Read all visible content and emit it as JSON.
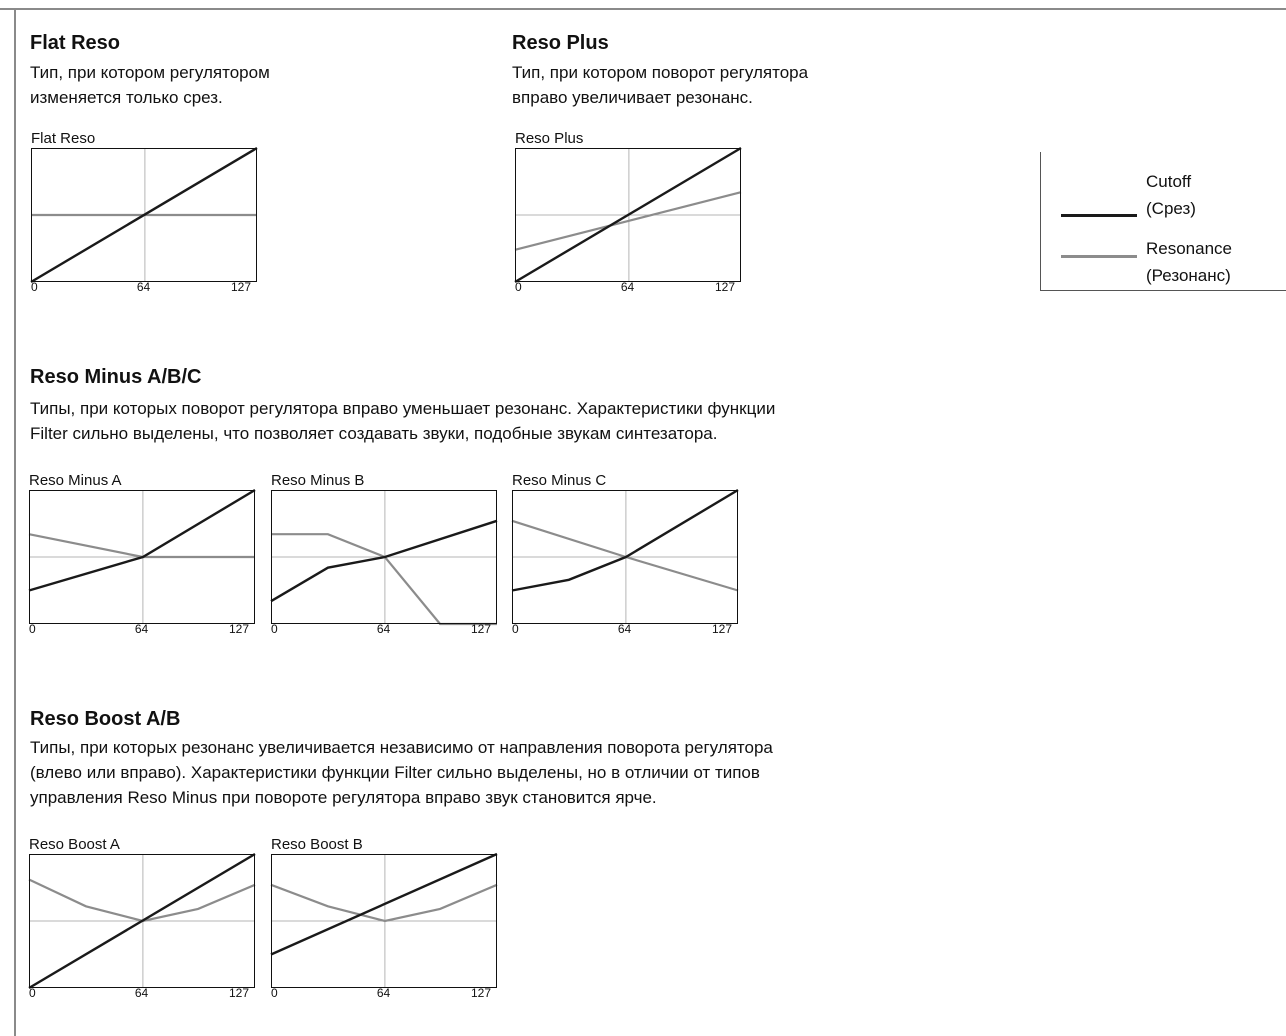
{
  "colors": {
    "cutoff": "#1a1a1a",
    "resonance": "#8c8c8c",
    "grid": "#b5b5b5",
    "frame": "#8a8a8a"
  },
  "legend": {
    "cutoff_label": "Cutoff",
    "cutoff_sub": "(Срез)",
    "resonance_label": "Resonance",
    "resonance_sub": "(Резонанс)"
  },
  "sections": {
    "flat": {
      "title": "Flat Reso",
      "desc": [
        "Тип, при котором регулятором",
        "изменяется только срез."
      ]
    },
    "plus": {
      "title": "Reso Plus",
      "desc": [
        "Тип, при котором поворот регулятора",
        "вправо увеличивает резонанс."
      ]
    },
    "minus": {
      "title": "Reso Minus A/B/C",
      "desc": [
        "Типы, при которых поворот регулятора вправо уменьшает резонанс. Характеристики функции",
        "Filter сильно выделены, что позволяет создавать звуки, подобные звукам синтезатора."
      ]
    },
    "boost": {
      "title": "Reso Boost A/B",
      "desc": [
        "Типы, при которых резонанс увеличивается независимо от направления поворота регулятора",
        "(влево или вправо). Характеристики функции Filter сильно выделены, но в отличии от типов",
        "управления Reso Minus при повороте регулятора вправо звук становится ярче."
      ]
    }
  },
  "chart_data": [
    {
      "type": "line",
      "title": "Flat Reso",
      "x_ticks": [
        "0",
        "64",
        "127"
      ],
      "xlim": [
        0,
        127
      ],
      "ylim": [
        0,
        1
      ],
      "series": [
        {
          "key": "cutoff",
          "x": [
            0,
            127
          ],
          "y": [
            0.0,
            1.0
          ]
        },
        {
          "key": "resonance",
          "x": [
            0,
            127
          ],
          "y": [
            0.5,
            0.5
          ]
        }
      ]
    },
    {
      "type": "line",
      "title": "Reso Plus",
      "x_ticks": [
        "0",
        "64",
        "127"
      ],
      "xlim": [
        0,
        127
      ],
      "ylim": [
        0,
        1
      ],
      "series": [
        {
          "key": "cutoff",
          "x": [
            0,
            127
          ],
          "y": [
            0.0,
            1.0
          ]
        },
        {
          "key": "resonance",
          "x": [
            0,
            127
          ],
          "y": [
            0.24,
            0.67
          ]
        }
      ]
    },
    {
      "type": "line",
      "title": "Reso Minus A",
      "x_ticks": [
        "0",
        "64",
        "127"
      ],
      "xlim": [
        0,
        127
      ],
      "ylim": [
        0,
        1
      ],
      "series": [
        {
          "key": "cutoff",
          "x": [
            0,
            64,
            127
          ],
          "y": [
            0.25,
            0.5,
            1.0
          ]
        },
        {
          "key": "resonance",
          "x": [
            0,
            64,
            127
          ],
          "y": [
            0.67,
            0.5,
            0.5
          ]
        }
      ]
    },
    {
      "type": "line",
      "title": "Reso Minus B",
      "x_ticks": [
        "0",
        "64",
        "127"
      ],
      "xlim": [
        0,
        127
      ],
      "ylim": [
        0,
        1
      ],
      "series": [
        {
          "key": "cutoff",
          "x": [
            0,
            32,
            64,
            127
          ],
          "y": [
            0.17,
            0.42,
            0.5,
            0.77
          ]
        },
        {
          "key": "resonance",
          "x": [
            0,
            32,
            64,
            95,
            127
          ],
          "y": [
            0.67,
            0.67,
            0.5,
            0.0,
            0.0
          ]
        }
      ]
    },
    {
      "type": "line",
      "title": "Reso Minus C",
      "x_ticks": [
        "0",
        "64",
        "127"
      ],
      "xlim": [
        0,
        127
      ],
      "ylim": [
        0,
        1
      ],
      "series": [
        {
          "key": "cutoff",
          "x": [
            0,
            32,
            64,
            127
          ],
          "y": [
            0.25,
            0.33,
            0.5,
            1.0
          ]
        },
        {
          "key": "resonance",
          "x": [
            0,
            64,
            127
          ],
          "y": [
            0.77,
            0.5,
            0.25
          ]
        }
      ]
    },
    {
      "type": "line",
      "title": "Reso Boost A",
      "x_ticks": [
        "0",
        "64",
        "127"
      ],
      "xlim": [
        0,
        127
      ],
      "ylim": [
        0,
        1
      ],
      "series": [
        {
          "key": "cutoff",
          "x": [
            0,
            127
          ],
          "y": [
            0.0,
            1.0
          ]
        },
        {
          "key": "resonance",
          "x": [
            0,
            32,
            64,
            95,
            127
          ],
          "y": [
            0.81,
            0.61,
            0.5,
            0.59,
            0.77
          ]
        }
      ]
    },
    {
      "type": "line",
      "title": "Reso Boost B",
      "x_ticks": [
        "0",
        "64",
        "127"
      ],
      "xlim": [
        0,
        127
      ],
      "ylim": [
        0,
        1
      ],
      "series": [
        {
          "key": "cutoff",
          "x": [
            0,
            127
          ],
          "y": [
            0.25,
            1.0
          ]
        },
        {
          "key": "resonance",
          "x": [
            0,
            32,
            64,
            95,
            127
          ],
          "y": [
            0.77,
            0.61,
            0.5,
            0.59,
            0.77
          ]
        }
      ]
    }
  ]
}
